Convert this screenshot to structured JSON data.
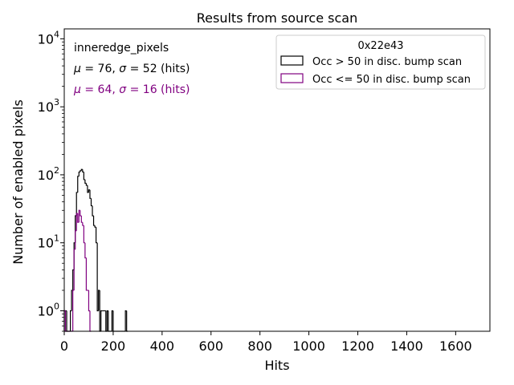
{
  "chart_data": {
    "type": "histogram",
    "title": "Results from source scan",
    "xlabel": "Hits",
    "ylabel": "Number of enabled pixels",
    "xlim": [
      0,
      1740
    ],
    "ylim": [
      0.5,
      14000
    ],
    "yscale": "log",
    "xticks": [
      0,
      200,
      400,
      600,
      800,
      1000,
      1200,
      1400,
      1600
    ],
    "yticks": [
      {
        "value": 1,
        "base": "10",
        "exp": "0"
      },
      {
        "value": 10,
        "base": "10",
        "exp": "1"
      },
      {
        "value": 100,
        "base": "10",
        "exp": "2"
      },
      {
        "value": 1000,
        "base": "10",
        "exp": "3"
      },
      {
        "value": 10000,
        "base": "10",
        "exp": "4"
      }
    ],
    "grid": false,
    "legend_position": "top-right",
    "legend_title": "0x22e43",
    "stats": {
      "label": "inneredge_pixels",
      "line1": {
        "mu_sym": "μ",
        "mid": " = 76, ",
        "sigma_sym": "σ",
        "tail": " = 52 (hits)",
        "color": "#000000"
      },
      "line2": {
        "mu_sym": "μ",
        "mid": " = 64, ",
        "sigma_sym": "σ",
        "tail": " = 16 (hits)",
        "color": "#800080"
      }
    },
    "bin_width": 5,
    "series": [
      {
        "name": "Occ > 50 in disc. bump scan",
        "color": "#000000",
        "bins": [
          [
            0,
            1
          ],
          [
            5,
            1
          ],
          [
            10,
            0
          ],
          [
            15,
            0
          ],
          [
            20,
            0
          ],
          [
            25,
            1
          ],
          [
            30,
            2
          ],
          [
            35,
            4
          ],
          [
            40,
            10
          ],
          [
            45,
            25
          ],
          [
            50,
            55
          ],
          [
            55,
            95
          ],
          [
            60,
            110
          ],
          [
            65,
            115
          ],
          [
            70,
            120
          ],
          [
            75,
            110
          ],
          [
            80,
            85
          ],
          [
            85,
            75
          ],
          [
            90,
            70
          ],
          [
            95,
            55
          ],
          [
            100,
            60
          ],
          [
            105,
            45
          ],
          [
            110,
            35
          ],
          [
            115,
            25
          ],
          [
            120,
            18
          ],
          [
            125,
            17
          ],
          [
            130,
            10
          ],
          [
            135,
            1
          ],
          [
            140,
            2
          ],
          [
            145,
            0
          ],
          [
            150,
            1
          ],
          [
            155,
            1
          ],
          [
            160,
            1
          ],
          [
            165,
            1
          ],
          [
            170,
            0
          ],
          [
            175,
            1
          ],
          [
            180,
            0
          ],
          [
            185,
            0
          ],
          [
            190,
            0
          ],
          [
            195,
            1
          ],
          [
            200,
            0
          ],
          [
            205,
            0
          ],
          [
            210,
            0
          ],
          [
            215,
            0
          ],
          [
            220,
            0
          ],
          [
            225,
            0
          ],
          [
            230,
            0
          ],
          [
            235,
            0
          ],
          [
            240,
            0
          ],
          [
            245,
            0
          ],
          [
            250,
            1
          ],
          [
            255,
            0
          ]
        ]
      },
      {
        "name": "Occ <= 50 in disc. bump scan",
        "color": "#800080",
        "bins": [
          [
            0,
            1
          ],
          [
            5,
            0
          ],
          [
            10,
            0
          ],
          [
            15,
            0
          ],
          [
            20,
            0
          ],
          [
            25,
            0
          ],
          [
            30,
            0
          ],
          [
            35,
            2
          ],
          [
            40,
            8
          ],
          [
            45,
            15
          ],
          [
            50,
            27
          ],
          [
            55,
            20
          ],
          [
            60,
            30
          ],
          [
            65,
            25
          ],
          [
            70,
            20
          ],
          [
            75,
            18
          ],
          [
            80,
            10
          ],
          [
            85,
            6
          ],
          [
            90,
            2
          ],
          [
            95,
            2
          ],
          [
            100,
            1
          ],
          [
            105,
            0
          ]
        ]
      }
    ]
  }
}
